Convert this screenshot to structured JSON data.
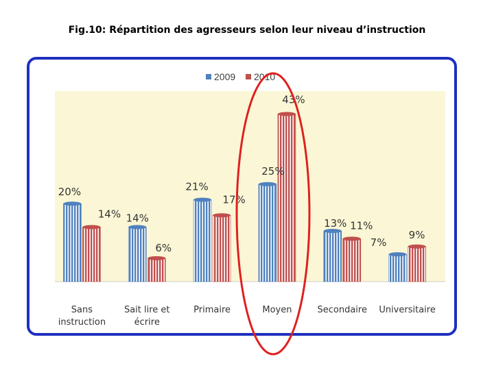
{
  "title": "Fig.10: Répartition des agresseurs selon leur niveau d’instruction",
  "colors": {
    "series_2009": "#4f81bd",
    "series_2010": "#c0504d",
    "plot_bg": "#fbf7d6",
    "frame_border": "#1f2fbf",
    "highlight_ellipse": "#e02020"
  },
  "highlight": {
    "category": "Moyen"
  },
  "chart_data": {
    "type": "bar",
    "title": "Fig.10: Répartition des agresseurs selon leur niveau d’instruction",
    "categories": [
      "Sans instruction",
      "Sait lire et écrire",
      "Primaire",
      "Moyen",
      "Secondaire",
      "Universitaire"
    ],
    "series": [
      {
        "name": "2009",
        "values": [
          20,
          14,
          21,
          25,
          13,
          7
        ]
      },
      {
        "name": "2010",
        "values": [
          14,
          6,
          17,
          43,
          11,
          9
        ]
      }
    ],
    "data_labels": [
      [
        "20%",
        "14%",
        "21%",
        "25%",
        "13%",
        "7%"
      ],
      [
        "14%",
        "6%",
        "17%",
        "43%",
        "11%",
        "9%"
      ]
    ],
    "unit": "%",
    "ylim": [
      0,
      45
    ],
    "grid": false,
    "legend": "top-center",
    "xlabel": "",
    "ylabel": ""
  }
}
